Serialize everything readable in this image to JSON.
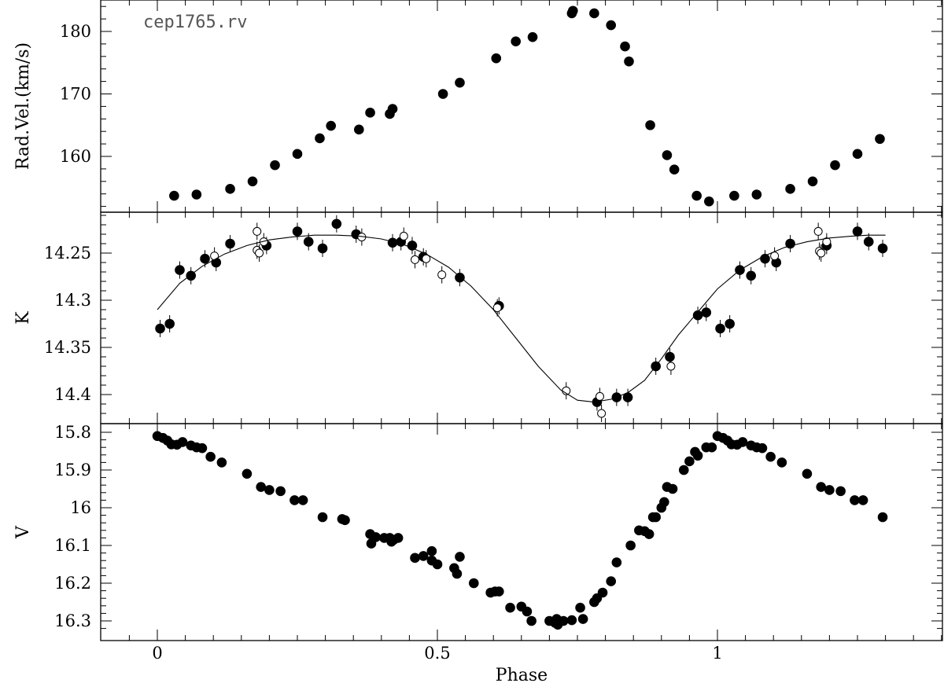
{
  "chart_data": {
    "type": "scatter",
    "title": "cep1765.rv",
    "xlabel": "Phase",
    "xlim": [
      -0.1,
      1.4
    ],
    "x_ticks": [
      "0",
      "0.5",
      "1"
    ],
    "x_tick_values": [
      0,
      0.5,
      1
    ],
    "panels": [
      {
        "name": "rv",
        "ylabel": "Rad.Vel.(km/s)",
        "ylim": [
          151.5,
          185
        ],
        "inverted": false,
        "y_ticks": [
          "160",
          "170",
          "180"
        ],
        "y_tick_values": [
          160,
          170,
          180
        ],
        "series": [
          {
            "style": "filled",
            "points": [
              [
                0.03,
                153.7
              ],
              [
                0.07,
                153.9
              ],
              [
                0.13,
                154.8
              ],
              [
                0.17,
                156.0
              ],
              [
                0.21,
                158.6
              ],
              [
                0.25,
                160.4
              ],
              [
                0.29,
                162.9
              ],
              [
                0.31,
                164.9
              ],
              [
                0.36,
                164.3
              ],
              [
                0.38,
                167.0
              ],
              [
                0.415,
                166.8
              ],
              [
                0.42,
                167.6
              ],
              [
                0.51,
                170.0
              ],
              [
                0.54,
                171.8
              ],
              [
                0.605,
                175.7
              ],
              [
                0.64,
                178.4
              ],
              [
                0.67,
                179.1
              ],
              [
                0.74,
                182.9
              ],
              [
                0.742,
                183.3
              ],
              [
                0.78,
                182.9
              ],
              [
                0.81,
                181.0
              ],
              [
                0.835,
                177.6
              ],
              [
                0.842,
                175.2
              ],
              [
                0.88,
                165.0
              ],
              [
                0.91,
                160.2
              ],
              [
                0.923,
                157.9
              ],
              [
                0.963,
                153.7
              ],
              [
                0.985,
                152.8
              ],
              [
                1.03,
                153.7
              ],
              [
                1.07,
                153.9
              ],
              [
                1.13,
                154.8
              ],
              [
                1.17,
                156.0
              ],
              [
                1.21,
                158.6
              ],
              [
                1.25,
                160.4
              ],
              [
                1.29,
                162.8
              ]
            ]
          }
        ]
      },
      {
        "name": "k",
        "ylabel": "K",
        "ylim": [
          14.2,
          14.43
        ],
        "inverted": true,
        "y_ticks": [
          "14.25",
          "14.3",
          "14.35",
          "14.4"
        ],
        "y_tick_values": [
          14.25,
          14.3,
          14.35,
          14.4
        ],
        "series": [
          {
            "style": "filled",
            "points": [
              [
                0.005,
                14.33
              ],
              [
                0.022,
                14.325
              ],
              [
                0.04,
                14.268
              ],
              [
                0.06,
                14.274
              ],
              [
                0.085,
                14.256
              ],
              [
                0.105,
                14.26
              ],
              [
                0.13,
                14.24
              ],
              [
                0.195,
                14.242
              ],
              [
                0.25,
                14.227
              ],
              [
                0.27,
                14.238
              ],
              [
                0.295,
                14.245
              ],
              [
                0.32,
                14.219
              ],
              [
                0.355,
                14.23
              ],
              [
                0.42,
                14.239
              ],
              [
                0.435,
                14.238
              ],
              [
                0.455,
                14.242
              ],
              [
                0.475,
                14.254
              ],
              [
                0.54,
                14.276
              ],
              [
                0.61,
                14.306
              ],
              [
                0.785,
                14.408
              ],
              [
                0.82,
                14.403
              ],
              [
                0.84,
                14.403
              ],
              [
                0.89,
                14.37
              ],
              [
                0.915,
                14.36
              ],
              [
                0.965,
                14.316
              ],
              [
                0.98,
                14.313
              ],
              [
                1.005,
                14.33
              ],
              [
                1.022,
                14.325
              ],
              [
                1.04,
                14.268
              ],
              [
                1.06,
                14.274
              ],
              [
                1.085,
                14.256
              ],
              [
                1.105,
                14.26
              ],
              [
                1.13,
                14.24
              ],
              [
                1.195,
                14.242
              ],
              [
                1.25,
                14.227
              ],
              [
                1.27,
                14.238
              ],
              [
                1.295,
                14.245
              ]
            ]
          },
          {
            "style": "open",
            "points": [
              [
                0.102,
                14.253
              ],
              [
                0.178,
                14.227
              ],
              [
                0.178,
                14.247
              ],
              [
                0.182,
                14.25
              ],
              [
                0.19,
                14.238
              ],
              [
                0.365,
                14.233
              ],
              [
                0.44,
                14.232
              ],
              [
                0.46,
                14.257
              ],
              [
                0.48,
                14.256
              ],
              [
                0.508,
                14.273
              ],
              [
                0.607,
                14.308
              ],
              [
                0.73,
                14.396
              ],
              [
                0.79,
                14.402
              ],
              [
                0.793,
                14.42
              ],
              [
                0.917,
                14.37
              ],
              [
                1.102,
                14.253
              ],
              [
                1.18,
                14.227
              ],
              [
                1.182,
                14.248
              ],
              [
                1.185,
                14.25
              ],
              [
                1.195,
                14.238
              ]
            ]
          },
          {
            "style": "line",
            "points": [
              [
                0.0,
                14.31
              ],
              [
                0.04,
                14.282
              ],
              [
                0.08,
                14.264
              ],
              [
                0.12,
                14.251
              ],
              [
                0.16,
                14.242
              ],
              [
                0.2,
                14.236
              ],
              [
                0.24,
                14.233
              ],
              [
                0.28,
                14.231
              ],
              [
                0.32,
                14.231
              ],
              [
                0.36,
                14.232
              ],
              [
                0.4,
                14.235
              ],
              [
                0.44,
                14.241
              ],
              [
                0.48,
                14.251
              ],
              [
                0.52,
                14.265
              ],
              [
                0.56,
                14.285
              ],
              [
                0.6,
                14.31
              ],
              [
                0.64,
                14.34
              ],
              [
                0.68,
                14.37
              ],
              [
                0.72,
                14.395
              ],
              [
                0.75,
                14.406
              ],
              [
                0.78,
                14.408
              ],
              [
                0.81,
                14.405
              ],
              [
                0.84,
                14.398
              ],
              [
                0.87,
                14.385
              ],
              [
                0.9,
                14.362
              ],
              [
                0.93,
                14.337
              ],
              [
                0.96,
                14.316
              ],
              [
                1.0,
                14.288
              ],
              [
                1.04,
                14.268
              ],
              [
                1.08,
                14.254
              ],
              [
                1.12,
                14.244
              ],
              [
                1.16,
                14.238
              ],
              [
                1.2,
                14.234
              ],
              [
                1.24,
                14.232
              ],
              [
                1.27,
                14.231
              ],
              [
                1.3,
                14.231
              ]
            ]
          }
        ]
      },
      {
        "name": "v",
        "ylabel": "V",
        "ylim": [
          15.78,
          16.32
        ],
        "inverted": true,
        "y_ticks": [
          "15.8",
          "15.9",
          "16",
          "16.1",
          "16.2",
          "16.3"
        ],
        "y_tick_values": [
          15.8,
          15.9,
          16.0,
          16.1,
          16.2,
          16.3
        ],
        "series": [
          {
            "style": "filled",
            "points": [
              [
                0.0,
                15.81
              ],
              [
                0.01,
                15.815
              ],
              [
                0.018,
                15.822
              ],
              [
                0.025,
                15.832
              ],
              [
                0.035,
                15.833
              ],
              [
                0.045,
                15.826
              ],
              [
                0.06,
                15.835
              ],
              [
                0.07,
                15.84
              ],
              [
                0.08,
                15.842
              ],
              [
                0.095,
                15.865
              ],
              [
                0.115,
                15.88
              ],
              [
                0.16,
                15.91
              ],
              [
                0.185,
                15.945
              ],
              [
                0.2,
                15.953
              ],
              [
                0.22,
                15.956
              ],
              [
                0.245,
                15.98
              ],
              [
                0.26,
                15.98
              ],
              [
                0.295,
                16.025
              ],
              [
                0.33,
                16.03
              ],
              [
                0.335,
                16.033
              ],
              [
                0.38,
                16.07
              ],
              [
                0.382,
                16.095
              ],
              [
                0.39,
                16.078
              ],
              [
                0.405,
                16.08
              ],
              [
                0.415,
                16.08
              ],
              [
                0.418,
                16.09
              ],
              [
                0.422,
                16.085
              ],
              [
                0.43,
                16.08
              ],
              [
                0.46,
                16.133
              ],
              [
                0.475,
                16.128
              ],
              [
                0.49,
                16.115
              ],
              [
                0.49,
                16.14
              ],
              [
                0.5,
                16.15
              ],
              [
                0.53,
                16.16
              ],
              [
                0.535,
                16.175
              ],
              [
                0.54,
                16.13
              ],
              [
                0.565,
                16.2
              ],
              [
                0.595,
                16.225
              ],
              [
                0.603,
                16.222
              ],
              [
                0.61,
                16.222
              ],
              [
                0.63,
                16.265
              ],
              [
                0.65,
                16.262
              ],
              [
                0.66,
                16.275
              ],
              [
                0.668,
                16.3
              ],
              [
                0.7,
                16.3
              ],
              [
                0.71,
                16.305
              ],
              [
                0.713,
                16.295
              ],
              [
                0.715,
                16.31
              ],
              [
                0.725,
                16.3
              ],
              [
                0.74,
                16.298
              ],
              [
                0.755,
                16.265
              ],
              [
                0.76,
                16.295
              ],
              [
                0.78,
                16.25
              ],
              [
                0.785,
                16.24
              ],
              [
                0.795,
                16.225
              ],
              [
                0.81,
                16.195
              ],
              [
                0.82,
                16.145
              ],
              [
                0.845,
                16.1
              ],
              [
                0.86,
                16.06
              ],
              [
                0.87,
                16.062
              ],
              [
                0.878,
                16.07
              ],
              [
                0.885,
                16.025
              ],
              [
                0.89,
                16.025
              ],
              [
                0.9,
                16.0
              ],
              [
                0.905,
                15.985
              ],
              [
                0.91,
                15.945
              ],
              [
                0.92,
                15.95
              ],
              [
                0.94,
                15.9
              ],
              [
                0.95,
                15.877
              ],
              [
                0.96,
                15.852
              ],
              [
                0.965,
                15.862
              ],
              [
                0.98,
                15.84
              ],
              [
                0.99,
                15.84
              ],
              [
                1.0,
                15.81
              ],
              [
                1.01,
                15.815
              ],
              [
                1.018,
                15.822
              ],
              [
                1.025,
                15.832
              ],
              [
                1.035,
                15.833
              ],
              [
                1.045,
                15.826
              ],
              [
                1.06,
                15.835
              ],
              [
                1.07,
                15.84
              ],
              [
                1.08,
                15.842
              ],
              [
                1.095,
                15.865
              ],
              [
                1.115,
                15.88
              ],
              [
                1.16,
                15.91
              ],
              [
                1.185,
                15.945
              ],
              [
                1.2,
                15.953
              ],
              [
                1.22,
                15.956
              ],
              [
                1.245,
                15.98
              ],
              [
                1.26,
                15.98
              ],
              [
                1.295,
                16.025
              ]
            ]
          }
        ]
      }
    ]
  }
}
